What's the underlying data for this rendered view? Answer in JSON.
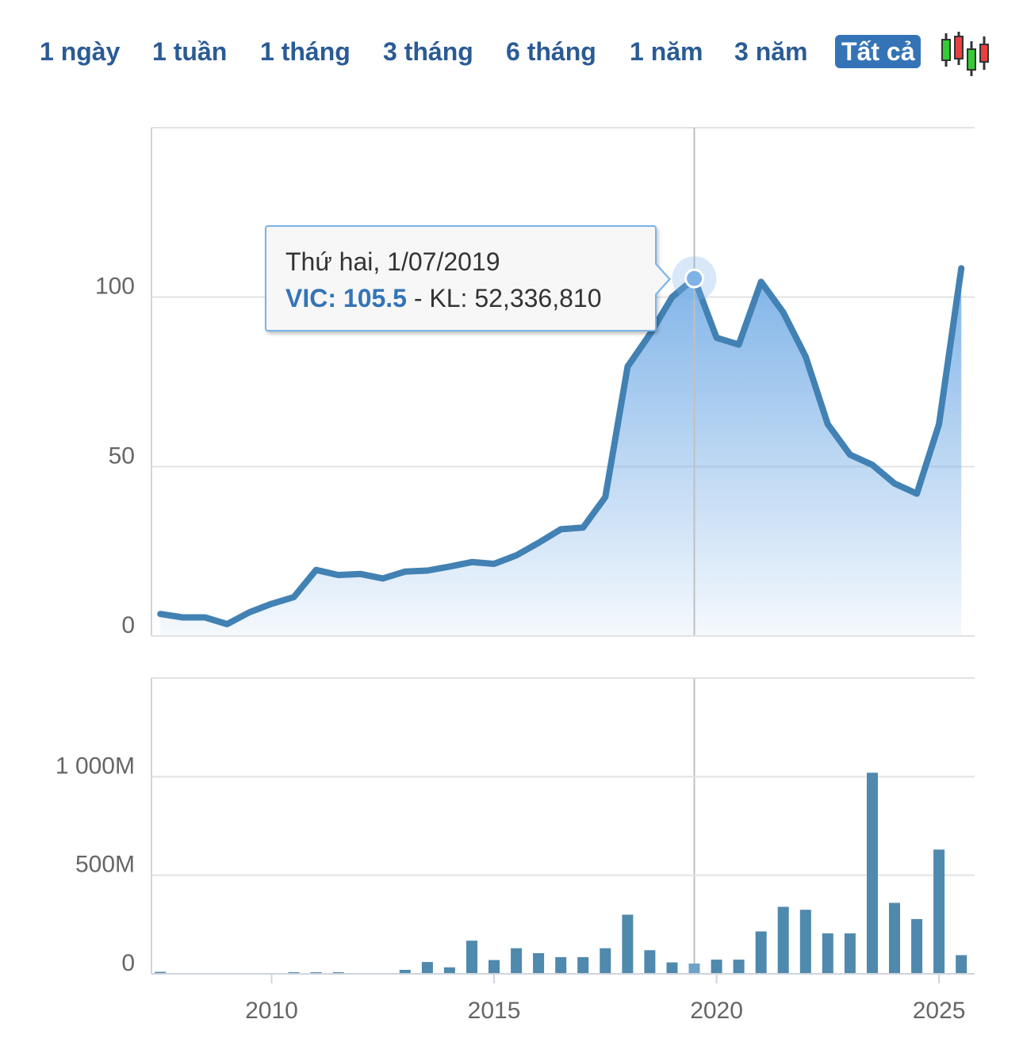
{
  "range_selector": {
    "buttons": [
      {
        "label": "1 ngày"
      },
      {
        "label": "1 tuần"
      },
      {
        "label": "1 tháng"
      },
      {
        "label": "3 tháng"
      },
      {
        "label": "6 tháng"
      },
      {
        "label": "1 năm"
      },
      {
        "label": "3 năm"
      },
      {
        "label": "Tất cả"
      }
    ],
    "active": "Tất cả",
    "chart_type_icon": "candlestick-icon"
  },
  "tooltip": {
    "date": "Thứ hai, 1/07/2019",
    "symbol_value": "VIC: 105.5",
    "separator": " - ",
    "volume": "KL: 52,336,810"
  },
  "colors": {
    "line": "#4281b3",
    "area_top": "#7fb3e8",
    "volume_bar": "#4f89ad",
    "active_button": "#3474b6",
    "button_text": "#2a5b95"
  },
  "chart_data": [
    {
      "type": "area",
      "symbol": "VIC",
      "x_unit": "year",
      "xlim": [
        2007.3,
        2025.8
      ],
      "ylim": [
        0,
        150
      ],
      "yticks": [
        0,
        50,
        100
      ],
      "xticks": [
        "2010",
        "2015",
        "2020",
        "2025"
      ],
      "grid": true,
      "highlight": {
        "x": 2019.5,
        "y": 105.5
      },
      "x": [
        2007.5,
        2008.0,
        2008.5,
        2009.0,
        2009.5,
        2010.0,
        2010.5,
        2011.0,
        2011.5,
        2012.0,
        2012.5,
        2013.0,
        2013.5,
        2014.0,
        2014.5,
        2015.0,
        2015.5,
        2016.0,
        2016.5,
        2017.0,
        2017.5,
        2018.0,
        2018.5,
        2019.0,
        2019.5,
        2020.0,
        2020.5,
        2021.0,
        2021.5,
        2022.0,
        2022.5,
        2023.0,
        2023.5,
        2024.0,
        2024.5,
        2025.0,
        2025.5
      ],
      "values": [
        6.5,
        5.5,
        5.5,
        3.5,
        7.0,
        9.5,
        11.5,
        19.5,
        18.0,
        18.3,
        17.0,
        19.0,
        19.3,
        20.5,
        21.8,
        21.3,
        23.8,
        27.5,
        31.5,
        32.0,
        41.0,
        79.5,
        89.0,
        100.0,
        105.5,
        88.0,
        86.0,
        104.5,
        95.5,
        82.5,
        62.5,
        53.5,
        50.5,
        45.0,
        42.0,
        62.5,
        108.5
      ]
    },
    {
      "type": "bar",
      "name": "KL",
      "x_unit": "year",
      "ylim": [
        0,
        1500000000
      ],
      "yticks": [
        "0",
        "500M",
        "1 000M"
      ],
      "grid": true,
      "x": [
        2007.5,
        2010.5,
        2011.0,
        2011.5,
        2013.0,
        2013.5,
        2014.0,
        2014.5,
        2015.0,
        2015.5,
        2016.0,
        2016.5,
        2017.0,
        2017.5,
        2018.0,
        2018.5,
        2019.0,
        2019.5,
        2020.0,
        2020.5,
        2021.0,
        2021.5,
        2022.0,
        2022.5,
        2023.0,
        2023.5,
        2024.0,
        2024.5,
        2025.0,
        2025.5
      ],
      "values": [
        10000000,
        8000000,
        8000000,
        8000000,
        20000000,
        60000000,
        33000000,
        168000000,
        70000000,
        130000000,
        105000000,
        85000000,
        85000000,
        130000000,
        300000000,
        120000000,
        58000000,
        52336810,
        72000000,
        72000000,
        215000000,
        340000000,
        325000000,
        205000000,
        205000000,
        1020000000,
        360000000,
        278000000,
        630000000,
        95000000
      ]
    }
  ]
}
